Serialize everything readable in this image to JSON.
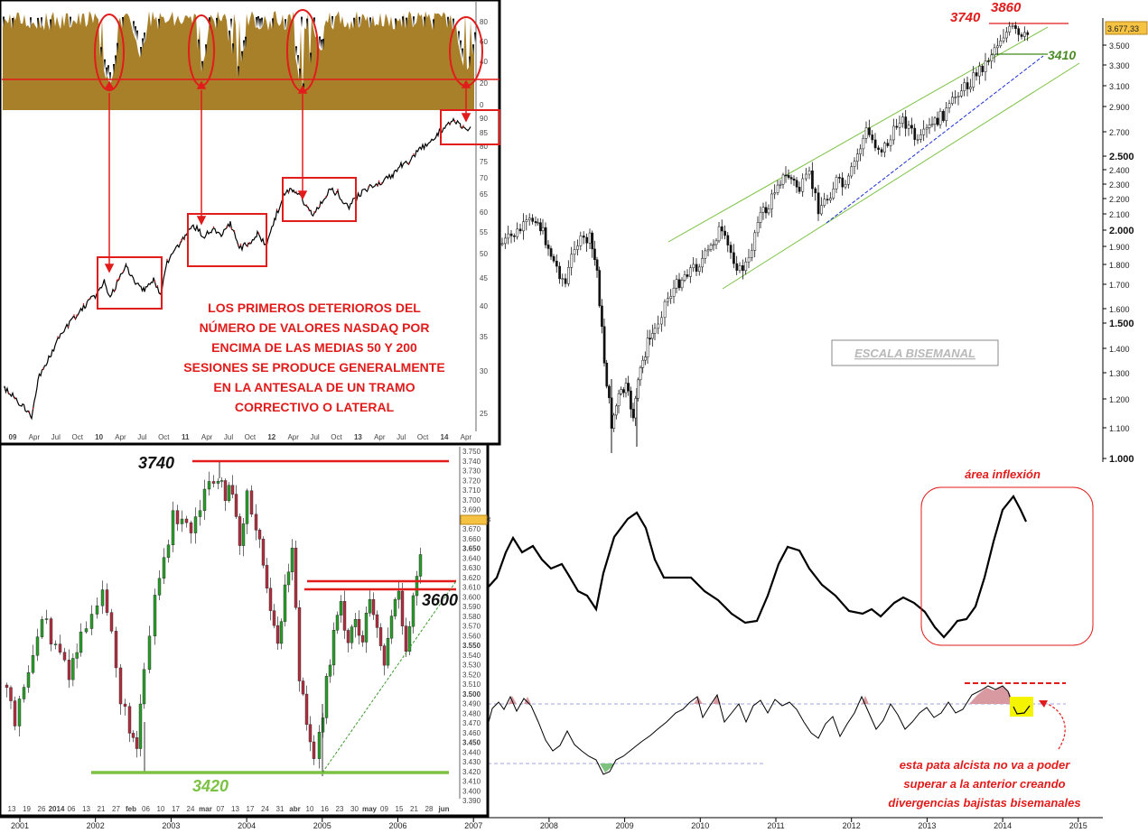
{
  "colors": {
    "up": "#2a9d2a",
    "down": "#b03040",
    "brown": "#a8802a",
    "red": "#e21b1b",
    "green_line": "#7bc142",
    "blue_dash": "#1c2fd6",
    "pink_fill": "#d89aa0",
    "yellow": "#f4f400"
  },
  "main_chart": {
    "y_ticks": [
      "3.677,33",
      "3.500",
      "3.300",
      "3.100",
      "2.900",
      "2.700",
      "2.500",
      "2.400",
      "2.300",
      "2.200",
      "2.100",
      "2.000",
      "1.900",
      "1.800",
      "1.700",
      "1.600",
      "1.500",
      "1.400",
      "1.300",
      "1.200",
      "1.100",
      "1.000"
    ],
    "x_ticks": [
      "2001",
      "2002",
      "2003",
      "2004",
      "2005",
      "2006",
      "2007",
      "2008",
      "2009",
      "2010",
      "2011",
      "2012",
      "2013",
      "2014",
      "2015"
    ],
    "scale_label": "ESCALA BISEMANAL",
    "labels": {
      "l3740": "3740",
      "l3860": "3860",
      "l3410": "3410"
    }
  },
  "inset_top": {
    "osc_ticks": [
      "80",
      "60",
      "40",
      "20",
      "0"
    ],
    "price_ticks": [
      "90",
      "85",
      "80",
      "75",
      "70",
      "65",
      "60",
      "55",
      "50",
      "45",
      "40",
      "35",
      "30",
      "25"
    ],
    "x_ticks": [
      "09",
      "Apr",
      "Jul",
      "Oct",
      "10",
      "Apr",
      "Jul",
      "Oct",
      "11",
      "Apr",
      "Jul",
      "Oct",
      "12",
      "Apr",
      "Jul",
      "Oct",
      "13",
      "Apr",
      "Jul",
      "Oct",
      "14",
      "Apr"
    ],
    "text_lines": [
      "LOS PRIMEROS DETERIOROS DEL",
      "NÚMERO DE VALORES NASDAQ POR",
      "ENCIMA DE LAS MEDIAS 50 Y 200",
      "SESIONES SE PRODUCE GENERALMENTE",
      "EN LA ANTESALA DE UN TRAMO",
      "CORRECTIVO O LATERAL"
    ]
  },
  "inset_bottom": {
    "y_ticks": [
      "3.750",
      "3.740",
      "3.730",
      "3.720",
      "3.710",
      "3.700",
      "3.690",
      "3.677,33",
      "3.670",
      "3.660",
      "3.650",
      "3.640",
      "3.630",
      "3.620",
      "3.610",
      "3.600",
      "3.590",
      "3.580",
      "3.570",
      "3.560",
      "3.550",
      "3.540",
      "3.530",
      "3.520",
      "3.510",
      "3.500",
      "3.490",
      "3.480",
      "3.470",
      "3.460",
      "3.450",
      "3.440",
      "3.430",
      "3.420",
      "3.410",
      "3.400",
      "3.390"
    ],
    "x_ticks": [
      "13",
      "19",
      "26",
      "2014",
      "06",
      "13",
      "21",
      "27",
      "feb",
      "06",
      "10",
      "17",
      "24",
      "mar",
      "07",
      "13",
      "17",
      "24",
      "31",
      "abr",
      "10",
      "16",
      "23",
      "30",
      "may",
      "09",
      "15",
      "21",
      "28",
      "jun"
    ],
    "labels": {
      "l3740": "3740",
      "l3600": "3600",
      "l3420": "3420"
    }
  },
  "osc1": {
    "title": "área inflexión"
  },
  "osc2": {
    "note_lines": [
      "esta pata alcista no va a poder",
      "superar a la anterior creando",
      "divergencias bajistas bisemanales"
    ]
  }
}
